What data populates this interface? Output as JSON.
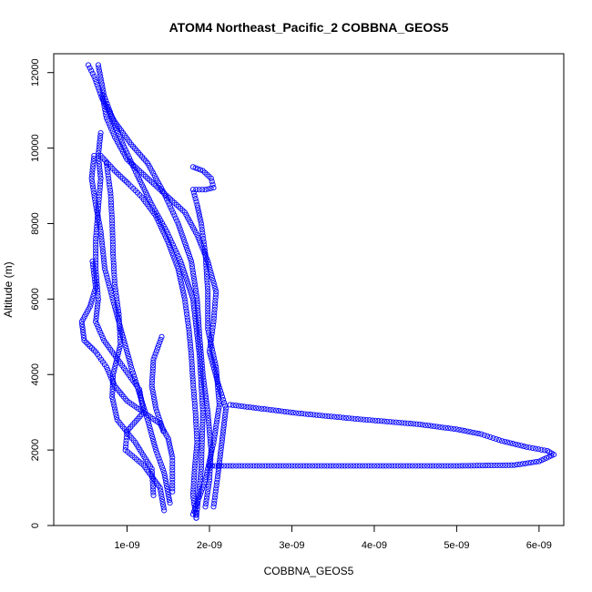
{
  "chart_data": {
    "type": "scatter",
    "title": "ATOM4 Northeast_Pacific_2 COBBNA_GEOS5",
    "xlabel": "COBBNA_GEOS5",
    "ylabel": "Altitude (m)",
    "xlim": [
      1.1e-10,
      6.3e-09
    ],
    "ylim": [
      0,
      12500
    ],
    "x_ticks": [
      {
        "value": 1e-09,
        "label": "1e-09"
      },
      {
        "value": 2e-09,
        "label": "2e-09"
      },
      {
        "value": 3e-09,
        "label": "3e-09"
      },
      {
        "value": 4e-09,
        "label": "4e-09"
      },
      {
        "value": 5e-09,
        "label": "5e-09"
      },
      {
        "value": 6e-09,
        "label": "6e-09"
      }
    ],
    "y_ticks": [
      {
        "value": 0,
        "label": "0"
      },
      {
        "value": 2000,
        "label": "2000"
      },
      {
        "value": 4000,
        "label": "4000"
      },
      {
        "value": 6000,
        "label": "6000"
      },
      {
        "value": 8000,
        "label": "8000"
      },
      {
        "value": 10000,
        "label": "10000"
      },
      {
        "value": 12000,
        "label": "12000"
      }
    ],
    "marker": "open-circle",
    "color": "#0000ff",
    "grid": false,
    "legend": "none",
    "series": [
      {
        "points": [
          [
            1.84e-09,
            200
          ],
          [
            1.8e-09,
            800
          ],
          [
            1.82e-09,
            1500
          ],
          [
            1.85e-09,
            2200
          ],
          [
            1.83e-09,
            3000
          ],
          [
            1.8e-09,
            3800
          ],
          [
            1.78e-09,
            4500
          ],
          [
            1.75e-09,
            5200
          ],
          [
            1.7e-09,
            6000
          ],
          [
            1.62e-09,
            6800
          ],
          [
            1.5e-09,
            7500
          ],
          [
            1.35e-09,
            8200
          ],
          [
            1.18e-09,
            8700
          ],
          [
            1.02e-09,
            9050
          ],
          [
            8.5e-10,
            9400
          ],
          [
            6.8e-10,
            9800
          ]
        ]
      },
      {
        "points": [
          [
            1.84e-09,
            200
          ],
          [
            1.9e-09,
            1500
          ],
          [
            1.92e-09,
            3000
          ],
          [
            1.88e-09,
            4500
          ],
          [
            1.8e-09,
            6000
          ],
          [
            1.65e-09,
            7000
          ],
          [
            1.48e-09,
            7800
          ],
          [
            1.3e-09,
            8500
          ],
          [
            1.12e-09,
            9300
          ],
          [
            9.5e-10,
            10100
          ],
          [
            8.2e-10,
            10800
          ],
          [
            7.2e-10,
            11400
          ],
          [
            6.5e-10,
            12200
          ]
        ]
      },
      {
        "points": [
          [
            1.95e-09,
            500
          ],
          [
            2e-09,
            1200
          ],
          [
            2.02e-09,
            2000
          ],
          [
            1.98e-09,
            3000
          ],
          [
            1.92e-09,
            4000
          ],
          [
            1.88e-09,
            5000
          ],
          [
            1.85e-09,
            6000
          ],
          [
            1.78e-09,
            7000
          ],
          [
            1.62e-09,
            8000
          ],
          [
            1.45e-09,
            8800
          ],
          [
            1.25e-09,
            9600
          ],
          [
            1.05e-09,
            10100
          ],
          [
            8.5e-10,
            10700
          ],
          [
            7e-10,
            11300
          ],
          [
            6e-10,
            11900
          ],
          [
            5.3e-10,
            12200
          ]
        ]
      },
      {
        "points": [
          [
            1.45e-09,
            400
          ],
          [
            1.4e-09,
            1000
          ],
          [
            1.2e-09,
            1600
          ],
          [
            9.8e-10,
            2000
          ],
          [
            1e-09,
            2500
          ],
          [
            1.2e-09,
            3000
          ],
          [
            1.15e-09,
            3600
          ],
          [
            9.2e-10,
            4300
          ],
          [
            7.2e-10,
            4900
          ],
          [
            6.2e-10,
            5400
          ],
          [
            6.5e-10,
            6000
          ],
          [
            6.2e-10,
            6800
          ],
          [
            6.2e-10,
            7600
          ],
          [
            6.5e-10,
            8400
          ],
          [
            6.8e-10,
            9200
          ],
          [
            6.5e-10,
            9800
          ],
          [
            6.8e-10,
            10400
          ]
        ]
      },
      {
        "points": [
          [
            1.32e-09,
            800
          ],
          [
            1.3e-09,
            1500
          ],
          [
            1.1e-09,
            2200
          ],
          [
            8.8e-10,
            2800
          ],
          [
            8.2e-10,
            3400
          ],
          [
            8.3e-10,
            4000
          ],
          [
            9.2e-10,
            4800
          ],
          [
            9e-10,
            5600
          ],
          [
            8.5e-10,
            6400
          ],
          [
            8.3e-10,
            7200
          ],
          [
            8.2e-10,
            8000
          ],
          [
            8e-10,
            8800
          ],
          [
            7.5e-10,
            9600
          ]
        ]
      },
      {
        "points": [
          [
            1.52e-09,
            600
          ],
          [
            1.45e-09,
            1400
          ],
          [
            1.35e-09,
            2000
          ],
          [
            1.25e-09,
            2800
          ],
          [
            1.15e-09,
            3500
          ],
          [
            1.05e-09,
            4200
          ],
          [
            9.5e-10,
            5000
          ],
          [
            8.5e-10,
            5800
          ],
          [
            7.3e-10,
            6800
          ],
          [
            6.8e-10,
            7800
          ],
          [
            6.2e-10,
            8500
          ],
          [
            5.7e-10,
            9200
          ],
          [
            6e-10,
            9800
          ]
        ]
      },
      {
        "points": [
          [
            5.8e-10,
            7000
          ],
          [
            6.2e-10,
            6300
          ],
          [
            5.5e-10,
            5800
          ],
          [
            4.5e-10,
            5400
          ],
          [
            4.8e-10,
            4900
          ],
          [
            6.2e-10,
            4600
          ],
          [
            7.5e-10,
            4200
          ],
          [
            8.5e-10,
            3700
          ],
          [
            1e-09,
            3300
          ],
          [
            1.2e-09,
            3000
          ],
          [
            1.4e-09,
            2700
          ],
          [
            1.5e-09,
            2300
          ],
          [
            1.55e-09,
            1800
          ],
          [
            1.55e-09,
            1300
          ],
          [
            1.55e-09,
            900
          ]
        ]
      },
      {
        "points": [
          [
            1.44e-09,
            2500
          ],
          [
            1.35e-09,
            3100
          ],
          [
            1.3e-09,
            3700
          ],
          [
            1.32e-09,
            4400
          ],
          [
            1.42e-09,
            5000
          ]
        ]
      },
      {
        "points": [
          [
            2.05e-09,
            500
          ],
          [
            2.1e-09,
            1300
          ],
          [
            2.15e-09,
            2200
          ],
          [
            2.2e-09,
            3100
          ],
          [
            2.1e-09,
            3800
          ],
          [
            2e-09,
            4600
          ],
          [
            2.05e-09,
            5400
          ],
          [
            2.08e-09,
            6200
          ],
          [
            1.98e-09,
            7000
          ],
          [
            1.85e-09,
            7700
          ],
          [
            1.7e-09,
            8300
          ],
          [
            1.45e-09,
            8800
          ],
          [
            1.2e-09,
            9300
          ],
          [
            1e-09,
            9700
          ],
          [
            8.5e-10,
            10300
          ],
          [
            7.5e-10,
            10800
          ],
          [
            7e-10,
            11400
          ]
        ]
      },
      {
        "points": [
          [
            1.8e-09,
            300
          ],
          [
            1.95e-09,
            1200
          ],
          [
            2.05e-09,
            2200
          ],
          [
            2.12e-09,
            3200
          ],
          [
            2.08e-09,
            4200
          ],
          [
            1.98e-09,
            5200
          ],
          [
            1.98e-09,
            6200
          ],
          [
            1.95e-09,
            7200
          ],
          [
            1.9e-09,
            8000
          ],
          [
            1.85e-09,
            8500
          ],
          [
            1.8e-09,
            8900
          ],
          [
            1.95e-09,
            8900
          ],
          [
            2.05e-09,
            8950
          ],
          [
            2.02e-09,
            9200
          ],
          [
            1.92e-09,
            9400
          ],
          [
            1.8e-09,
            9500
          ]
        ]
      },
      {
        "points": [
          [
            2.25e-09,
            3200
          ],
          [
            3.05e-09,
            2980
          ],
          [
            3.8e-09,
            2820
          ],
          [
            4.55e-09,
            2680
          ],
          [
            5e-09,
            2550
          ],
          [
            5.3e-09,
            2420
          ],
          [
            5.55e-09,
            2240
          ],
          [
            5.85e-09,
            2080
          ],
          [
            6.1e-09,
            1980
          ],
          [
            6.18e-09,
            1880
          ],
          [
            6e-09,
            1700
          ],
          [
            5.7e-09,
            1600
          ],
          [
            5e-09,
            1580
          ],
          [
            4e-09,
            1580
          ],
          [
            3e-09,
            1580
          ],
          [
            2e-09,
            1580
          ]
        ]
      }
    ]
  }
}
